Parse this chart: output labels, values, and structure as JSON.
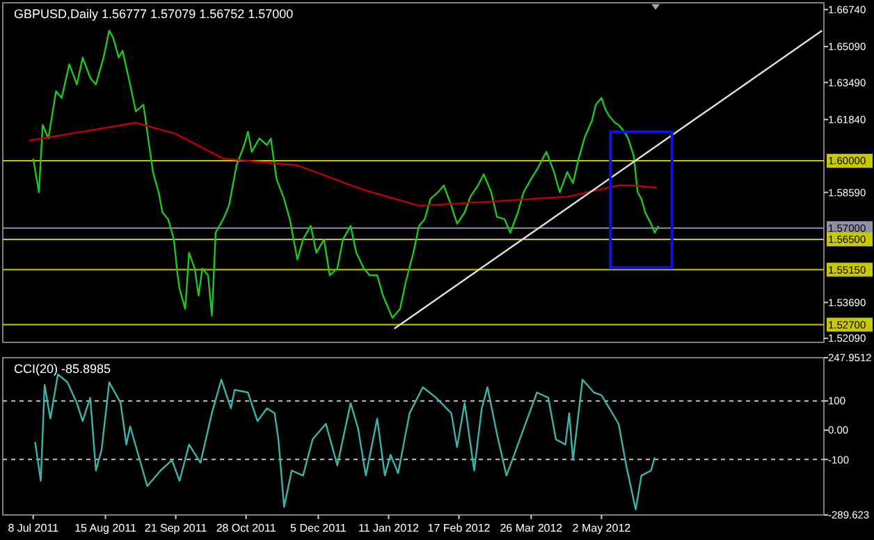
{
  "chart_data": [
    {
      "type": "line",
      "title": "GBPUSD,Daily 1.56777 1.57079 1.56752 1.57000",
      "tick_labels": "y",
      "grid": false,
      "xlim": [
        "2011-06-22",
        "2012-08-27"
      ],
      "ylim": [
        1.5191,
        1.6704
      ],
      "yticks": [
        {
          "value": 1.6674,
          "label": "1.66740"
        },
        {
          "value": 1.6509,
          "label": "1.65090"
        },
        {
          "value": 1.6349,
          "label": "1.63490"
        },
        {
          "value": 1.6184,
          "label": "1.61840"
        },
        {
          "value": 1.5859,
          "label": "1.58590"
        },
        {
          "value": 1.5369,
          "label": "1.53690"
        },
        {
          "value": 1.5209,
          "label": "1.52090"
        }
      ],
      "ref_lines": [
        {
          "axis": "y",
          "value": 1.6,
          "label": "1.60000",
          "color": "#c8c800"
        },
        {
          "axis": "y",
          "value": 1.57,
          "label": "1.57000",
          "color": "#9090a8"
        },
        {
          "axis": "y",
          "value": 1.565,
          "label": "1.56500",
          "color": "#c8c800"
        },
        {
          "axis": "y",
          "value": 1.5515,
          "label": "1.55150",
          "color": "#c8c800"
        },
        {
          "axis": "y",
          "value": 1.527,
          "label": "1.52700",
          "color": "#c8c800"
        }
      ],
      "series": [
        {
          "color": "#1ec81e",
          "x": [
            "2011-07-08",
            "2011-07-11",
            "2011-07-13",
            "2011-07-16",
            "2011-07-20",
            "2011-07-23",
            "2011-07-27",
            "2011-07-31",
            "2011-08-03",
            "2011-08-07",
            "2011-08-10",
            "2011-08-14",
            "2011-08-17",
            "2011-08-19",
            "2011-08-22",
            "2011-08-24",
            "2011-08-28",
            "2011-08-31",
            "2011-09-04",
            "2011-09-06",
            "2011-09-09",
            "2011-09-12",
            "2011-09-14",
            "2011-09-17",
            "2011-09-20",
            "2011-09-22",
            "2011-09-23",
            "2011-09-26",
            "2011-09-28",
            "2011-10-01",
            "2011-10-03",
            "2011-10-05",
            "2011-10-08",
            "2011-10-10",
            "2011-10-12",
            "2011-10-16",
            "2011-10-19",
            "2011-10-23",
            "2011-10-27",
            "2011-10-29",
            "2011-10-31",
            "2011-11-04",
            "2011-11-08",
            "2011-11-10",
            "2011-11-13",
            "2011-11-17",
            "2011-11-20",
            "2011-11-24",
            "2011-11-27",
            "2011-12-01",
            "2011-12-04",
            "2011-12-08",
            "2011-12-11",
            "2011-12-15",
            "2011-12-18",
            "2011-12-22",
            "2011-12-25",
            "2011-12-29",
            "2012-01-01",
            "2012-01-05",
            "2012-01-08",
            "2012-01-13",
            "2012-01-17",
            "2012-01-20",
            "2012-01-24",
            "2012-01-27",
            "2012-01-30",
            "2012-02-02",
            "2012-02-06",
            "2012-02-09",
            "2012-02-13",
            "2012-02-16",
            "2012-02-20",
            "2012-02-23",
            "2012-02-27",
            "2012-03-01",
            "2012-03-05",
            "2012-03-08",
            "2012-03-12",
            "2012-03-15",
            "2012-03-19",
            "2012-03-22",
            "2012-03-26",
            "2012-03-29",
            "2012-04-03",
            "2012-04-07",
            "2012-04-10",
            "2012-04-14",
            "2012-04-17",
            "2012-04-20",
            "2012-04-23",
            "2012-04-27",
            "2012-04-29",
            "2012-05-02",
            "2012-05-04",
            "2012-05-06",
            "2012-05-09",
            "2012-05-11",
            "2012-05-14",
            "2012-05-16",
            "2012-05-19",
            "2012-05-21",
            "2012-05-23",
            "2012-05-25",
            "2012-05-28",
            "2012-05-30",
            "2012-06-01"
          ],
          "values": [
            1.601,
            1.586,
            1.616,
            1.61,
            1.631,
            1.628,
            1.643,
            1.634,
            1.646,
            1.637,
            1.634,
            1.646,
            1.658,
            1.655,
            1.646,
            1.649,
            1.634,
            1.622,
            1.625,
            1.613,
            1.595,
            1.586,
            1.577,
            1.574,
            1.565,
            1.549,
            1.543,
            1.534,
            1.559,
            1.552,
            1.54,
            1.552,
            1.549,
            1.531,
            1.568,
            1.574,
            1.58,
            1.598,
            1.607,
            1.613,
            1.604,
            1.61,
            1.607,
            1.61,
            1.592,
            1.583,
            1.574,
            1.556,
            1.565,
            1.571,
            1.559,
            1.565,
            1.549,
            1.552,
            1.565,
            1.571,
            1.559,
            1.552,
            1.549,
            1.549,
            1.54,
            1.53,
            1.534,
            1.546,
            1.559,
            1.571,
            1.574,
            1.583,
            1.586,
            1.589,
            1.58,
            1.572,
            1.577,
            1.584,
            1.589,
            1.594,
            1.586,
            1.575,
            1.574,
            1.568,
            1.577,
            1.586,
            1.592,
            1.596,
            1.604,
            1.595,
            1.586,
            1.595,
            1.59,
            1.601,
            1.61,
            1.618,
            1.625,
            1.628,
            1.623,
            1.62,
            1.617,
            1.616,
            1.613,
            1.61,
            1.602,
            1.586,
            1.583,
            1.577,
            1.572,
            1.568,
            1.571
          ]
        },
        {
          "color": "#c00000",
          "x": [
            "2011-07-06",
            "2011-08-03",
            "2011-08-31",
            "2011-09-21",
            "2011-10-16",
            "2011-11-24",
            "2011-12-29",
            "2012-01-27",
            "2012-03-08",
            "2012-04-14",
            "2012-05-11",
            "2012-05-19",
            "2012-05-31"
          ],
          "values": [
            1.609,
            1.613,
            1.617,
            1.612,
            1.601,
            1.598,
            1.587,
            1.58,
            1.582,
            1.584,
            1.589,
            1.589,
            1.588
          ]
        },
        {
          "color": "#e0e0e0",
          "x": [
            "2012-01-14",
            "2012-08-26"
          ],
          "values": [
            1.5252,
            1.658
          ]
        }
      ]
    },
    {
      "type": "line",
      "title": "CCI(20) -85.8985",
      "grid": false,
      "xlim": [
        "2011-06-22",
        "2012-08-27"
      ],
      "xticks": [
        {
          "value": "2011-07-08",
          "label": "8 Jul 2011"
        },
        {
          "value": "2011-08-15",
          "label": "15 Aug 2011"
        },
        {
          "value": "2011-09-21",
          "label": "21 Sep 2011"
        },
        {
          "value": "2011-10-28",
          "label": "28 Oct 2011"
        },
        {
          "value": "2011-12-05",
          "label": "5 Dec 2011"
        },
        {
          "value": "2012-01-11",
          "label": "11 Jan 2012"
        },
        {
          "value": "2012-02-17",
          "label": "17 Feb 2012"
        },
        {
          "value": "2012-03-26",
          "label": "26 Mar 2012"
        },
        {
          "value": "2012-05-02",
          "label": "2 May 2012"
        }
      ],
      "ylim": [
        -289.623,
        247.9512
      ],
      "yticks": [
        247.9512,
        100,
        {
          "value": 0,
          "label": "0.00"
        },
        -100,
        -289.623
      ],
      "ref_lines": [
        {
          "axis": "y",
          "value": 100,
          "color": "#c0c0c0",
          "line_style": "dashed"
        },
        {
          "axis": "y",
          "value": -100,
          "color": "#c0c0c0",
          "line_style": "dashed"
        }
      ],
      "series": [
        {
          "color": "#3cb4aa",
          "x": [
            "2011-07-09",
            "2011-07-12",
            "2011-07-14",
            "2011-07-17",
            "2011-07-21",
            "2011-07-26",
            "2011-07-31",
            "2011-08-03",
            "2011-08-07",
            "2011-08-10",
            "2011-08-13",
            "2011-08-17",
            "2011-08-23",
            "2011-08-26",
            "2011-08-28",
            "2011-09-06",
            "2011-09-13",
            "2011-09-19",
            "2011-09-23",
            "2011-09-28",
            "2011-10-04",
            "2011-10-10",
            "2011-10-15",
            "2011-10-20",
            "2011-10-22",
            "2011-10-29",
            "2011-11-03",
            "2011-11-08",
            "2011-11-12",
            "2011-11-14",
            "2011-11-17",
            "2011-11-21",
            "2011-11-27",
            "2011-12-02",
            "2011-12-09",
            "2011-12-15",
            "2011-12-22",
            "2011-12-26",
            "2011-12-30",
            "2012-01-05",
            "2012-01-09",
            "2012-01-12",
            "2012-01-16",
            "2012-01-22",
            "2012-01-29",
            "2012-02-05",
            "2012-02-13",
            "2012-02-16",
            "2012-02-20",
            "2012-02-25",
            "2012-02-29",
            "2012-03-03",
            "2012-03-08",
            "2012-03-13",
            "2012-03-18",
            "2012-03-27",
            "2012-03-29",
            "2012-04-04",
            "2012-04-08",
            "2012-04-13",
            "2012-04-15",
            "2012-04-17",
            "2012-04-22",
            "2012-04-28",
            "2012-05-02",
            "2012-05-11",
            "2012-05-15",
            "2012-05-20",
            "2012-05-23",
            "2012-05-28",
            "2012-05-30"
          ],
          "values": [
            -40,
            -173,
            155,
            40,
            191,
            164,
            93,
            31,
            111,
            -138,
            -67,
            164,
            93,
            -49,
            13,
            -191,
            -138,
            -102,
            -173,
            -49,
            -111,
            58,
            173,
            75,
            138,
            129,
            31,
            75,
            58,
            -31,
            -262,
            -138,
            -155,
            -31,
            22,
            -120,
            93,
            4,
            -155,
            40,
            -155,
            -84,
            -147,
            58,
            147,
            111,
            58,
            -58,
            93,
            -138,
            75,
            147,
            -13,
            -155,
            -67,
            93,
            129,
            111,
            -31,
            -49,
            58,
            -102,
            173,
            129,
            120,
            22,
            -120,
            -271,
            -155,
            -138,
            -93
          ]
        }
      ]
    }
  ]
}
